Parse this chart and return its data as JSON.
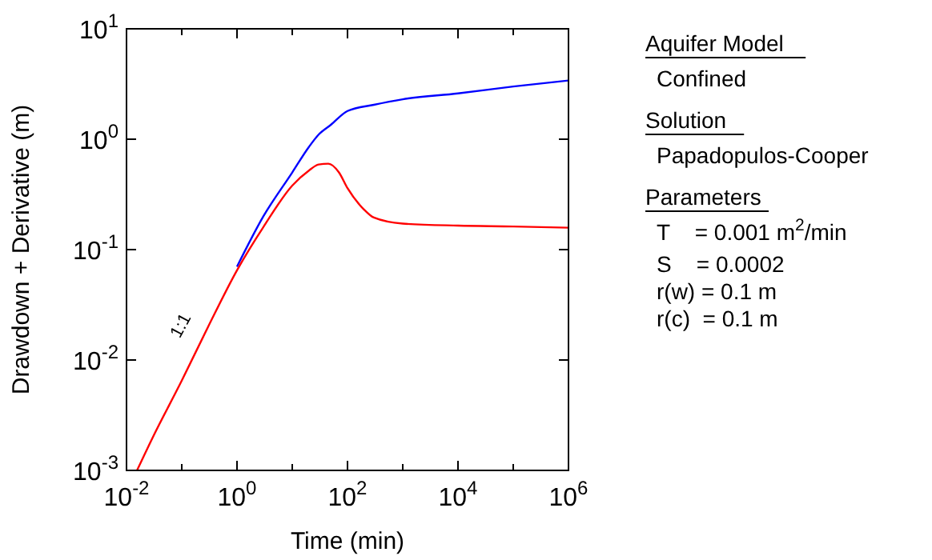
{
  "chart_data": {
    "type": "line",
    "xlabel": "Time (min)",
    "ylabel": "Drawdown + Derivative (m)",
    "log": "xy",
    "grid": false,
    "xlim": [
      0.01,
      1000000
    ],
    "ylim": [
      0.001,
      10
    ],
    "xticks": [
      {
        "value": 0.01,
        "label": "10$^{-2}$"
      },
      {
        "value": 0.1,
        "label": null
      },
      {
        "value": 1,
        "label": "10$^{0}$"
      },
      {
        "value": 10,
        "label": null
      },
      {
        "value": 100,
        "label": "10$^{2}$"
      },
      {
        "value": 1000,
        "label": null
      },
      {
        "value": 10000,
        "label": "10$^{4}$"
      },
      {
        "value": 100000,
        "label": null
      },
      {
        "value": 1000000,
        "label": "10$^{6}$"
      }
    ],
    "yticks": [
      {
        "value": 0.001,
        "label": "10$^{-3}$"
      },
      {
        "value": 0.01,
        "label": "10$^{-2}$"
      },
      {
        "value": 0.1,
        "label": "10$^{-1}$"
      },
      {
        "value": 1,
        "label": "10$^{0}$"
      },
      {
        "value": 10,
        "label": "10$^{1}$"
      }
    ],
    "series": [
      {
        "color": "#0000ff",
        "x": [
          1,
          3,
          10,
          20,
          30,
          50,
          100,
          300,
          1000,
          10000,
          100000,
          1000000
        ],
        "values": [
          0.07,
          0.2,
          0.5,
          0.85,
          1.1,
          1.35,
          1.8,
          2.05,
          2.3,
          2.6,
          3.0,
          3.4
        ]
      },
      {
        "color": "#ff0000",
        "x": [
          0.0155,
          0.03,
          0.1,
          0.3,
          1,
          3,
          10,
          20,
          30,
          45,
          70,
          100,
          200,
          300,
          1000,
          10000,
          100000,
          1000000
        ],
        "values": [
          0.001,
          0.002,
          0.0065,
          0.02,
          0.065,
          0.16,
          0.38,
          0.52,
          0.59,
          0.6,
          0.5,
          0.36,
          0.23,
          0.195,
          0.172,
          0.165,
          0.162,
          0.158
        ]
      }
    ],
    "annotations": [
      {
        "text": "1:1",
        "x": 0.2,
        "y": 0.013
      },
      "Aquifer Model",
      "Confined",
      "Solution",
      "Papadopulos-Cooper",
      "Parameters",
      "T    = 0.001 m$^{2}$/min",
      "S    = 0.0002",
      "r(w) = 0.1 m",
      "r(c)  = 0.1 m"
    ]
  }
}
